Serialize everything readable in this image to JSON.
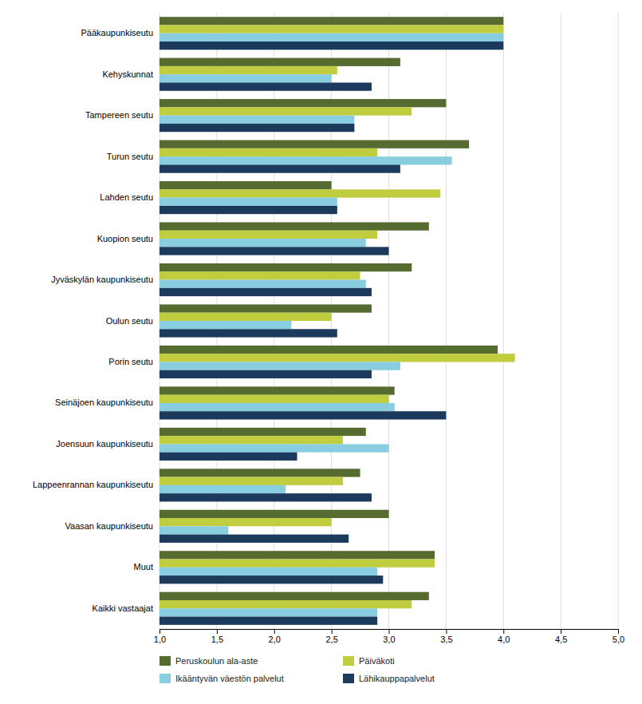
{
  "chart_data": {
    "type": "bar",
    "orientation": "horizontal",
    "categories": [
      "Pääkaupunkiseutu",
      "Kehyskunnat",
      "Tampereen seutu",
      "Turun seutu",
      "Lahden seutu",
      "Kuopion seutu",
      "Jyväskylän kaupunkiseutu",
      "Oulun seutu",
      "Porin seutu",
      "Seinäjoen kaupunkiseutu",
      "Joensuun kaupunkiseutu",
      "Lappeenrannan kaupunkiseutu",
      "Vaasan kaupunkiseutu",
      "Muut",
      "Kaikki vastaajat"
    ],
    "series": [
      {
        "name": "Peruskoulun ala-aste",
        "color": "#556B2F",
        "values": [
          4.0,
          3.1,
          3.5,
          3.7,
          2.5,
          3.35,
          3.2,
          2.85,
          3.95,
          3.05,
          2.8,
          2.75,
          3.0,
          3.4,
          3.35
        ]
      },
      {
        "name": "Päiväkoti",
        "color": "#BFCD3E",
        "values": [
          4.0,
          2.55,
          3.2,
          2.9,
          3.45,
          2.9,
          2.75,
          2.5,
          4.1,
          3.0,
          2.6,
          2.6,
          2.5,
          3.4,
          3.2
        ]
      },
      {
        "name": "Ikääntyvän väestön palvelut",
        "color": "#89CDE0",
        "values": [
          4.0,
          2.5,
          2.7,
          3.55,
          2.55,
          2.8,
          2.8,
          2.15,
          3.1,
          3.05,
          3.0,
          2.1,
          1.6,
          2.9,
          2.9
        ]
      },
      {
        "name": "Lähikauppapalvelut",
        "color": "#1C3A5C",
        "values": [
          4.0,
          2.85,
          2.7,
          3.1,
          2.55,
          3.0,
          2.85,
          2.55,
          2.85,
          3.5,
          2.2,
          2.85,
          2.65,
          2.95,
          2.9
        ]
      }
    ],
    "xlim": [
      1.0,
      5.0
    ],
    "xticks": [
      {
        "value": 1.0,
        "label": "1,0"
      },
      {
        "value": 1.5,
        "label": "1,5"
      },
      {
        "value": 2.0,
        "label": "2,0"
      },
      {
        "value": 2.5,
        "label": "2,5"
      },
      {
        "value": 3.0,
        "label": "3,0"
      },
      {
        "value": 3.5,
        "label": "3,5"
      },
      {
        "value": 4.0,
        "label": "4,0"
      },
      {
        "value": 4.5,
        "label": "4,5"
      },
      {
        "value": 5.0,
        "label": "5,0"
      }
    ],
    "grid": true,
    "legend": "bottom"
  }
}
